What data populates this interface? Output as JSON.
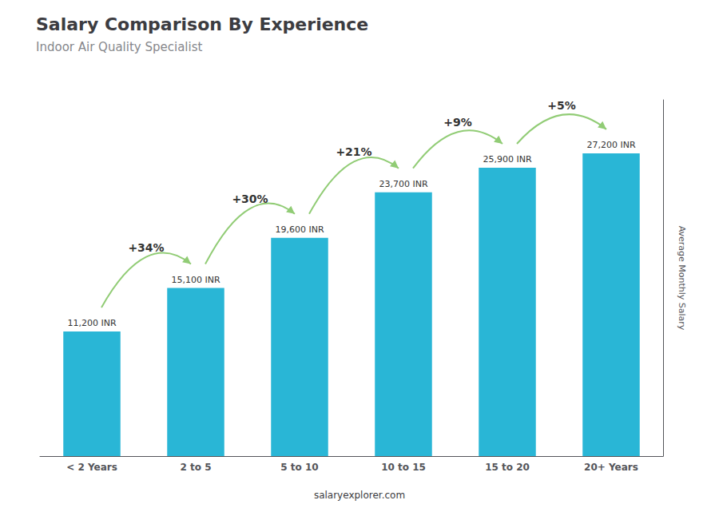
{
  "chart_data": {
    "type": "bar",
    "title": "Salary Comparison By Experience",
    "subtitle": "Indoor Air Quality Specialist",
    "ylabel": "Average Monthly Salary",
    "categories": [
      "< 2 Years",
      "2 to 5",
      "5 to 10",
      "10 to 15",
      "15 to 20",
      "20+ Years"
    ],
    "values": [
      11200,
      15100,
      19600,
      23700,
      25900,
      27200
    ],
    "value_labels": [
      "11,200 INR",
      "15,100 INR",
      "19,600 INR",
      "23,700 INR",
      "25,900 INR",
      "27,200 INR"
    ],
    "data_labels": true,
    "color": "#29B6D6",
    "annotations": [
      "+34%",
      "+30%",
      "+21%",
      "+9%",
      "+5%"
    ],
    "footer": "salaryexplorer.com",
    "ylim": [
      0,
      32000
    ],
    "grid": false,
    "tick_labels": "x"
  }
}
